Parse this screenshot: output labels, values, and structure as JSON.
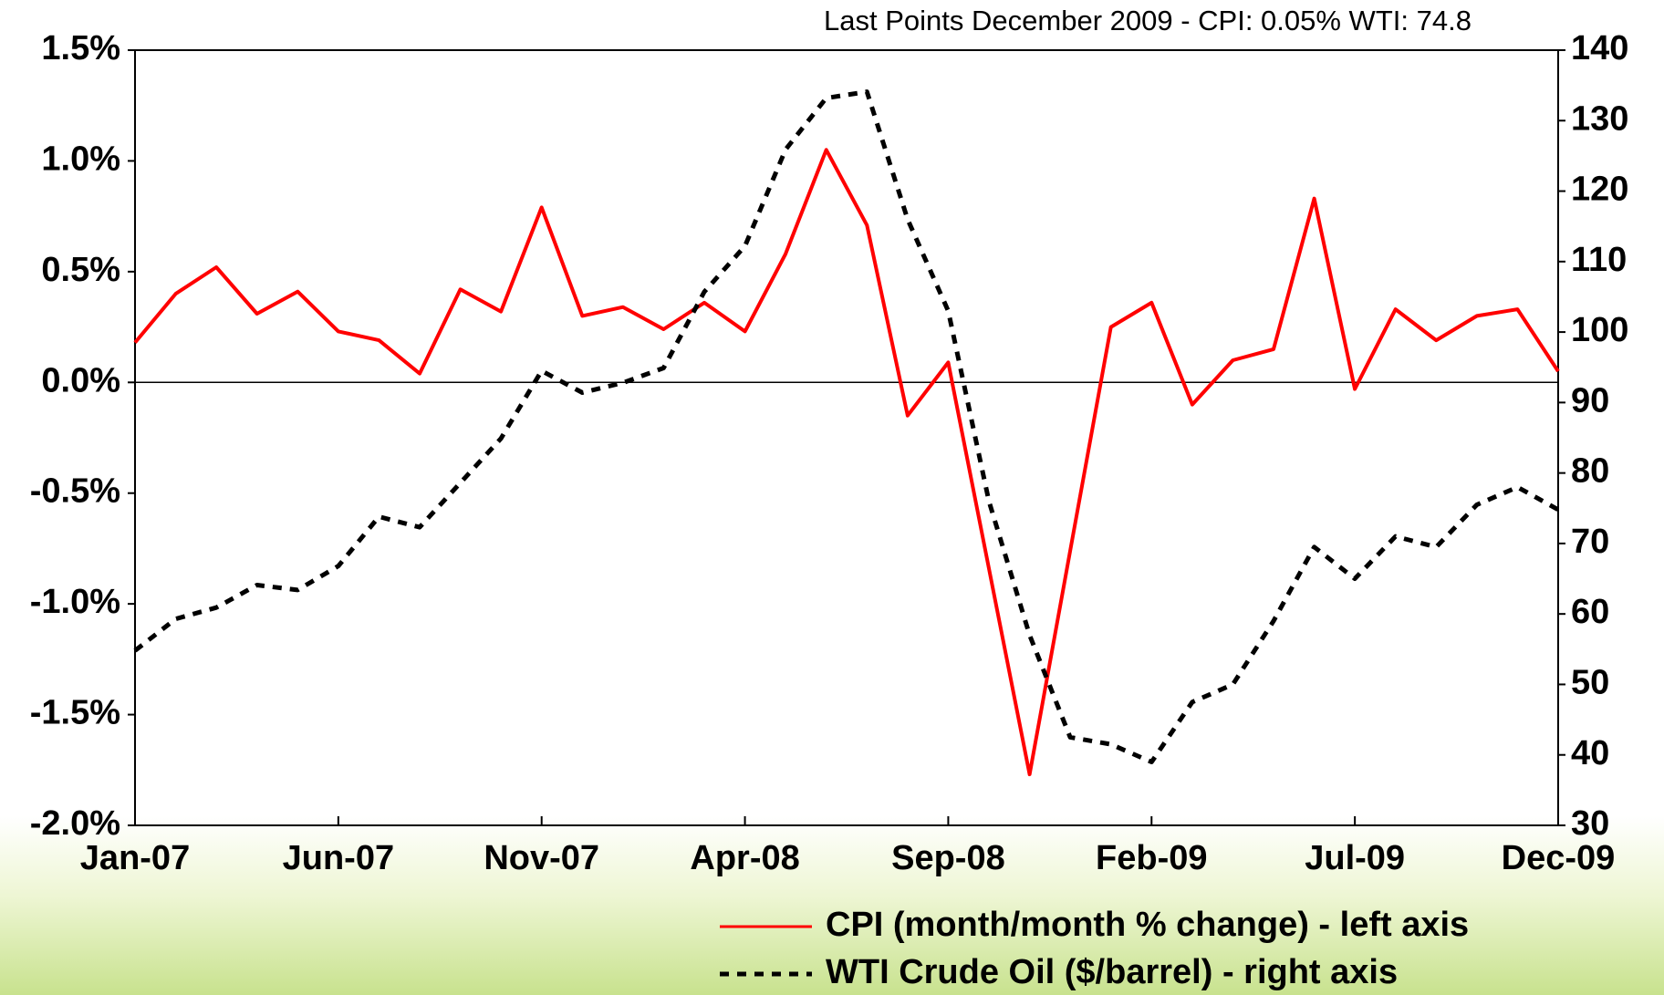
{
  "chart_data": {
    "type": "line",
    "annotation": "Last Points December 2009 - CPI: 0.05% WTI: 74.8",
    "categories": [
      "Jan-07",
      null,
      null,
      null,
      null,
      "Jun-07",
      null,
      null,
      null,
      null,
      "Nov-07",
      null,
      null,
      null,
      null,
      "Apr-08",
      null,
      null,
      null,
      null,
      "Sep-08",
      null,
      null,
      null,
      null,
      "Feb-09",
      null,
      null,
      null,
      null,
      "Jul-09",
      null,
      null,
      null,
      null,
      "Dec-09"
    ],
    "series": [
      {
        "name": "CPI (month/month % change) - left axis",
        "color": "#ff0000",
        "dash": false,
        "values": [
          0.18,
          0.4,
          0.52,
          0.31,
          0.41,
          0.23,
          0.19,
          0.04,
          0.42,
          0.32,
          0.79,
          0.3,
          0.34,
          0.24,
          0.36,
          0.23,
          0.58,
          1.05,
          0.71,
          -0.15,
          0.09,
          -0.84,
          -1.77,
          -0.76,
          0.25,
          0.36,
          -0.1,
          0.1,
          0.15,
          0.83,
          -0.03,
          0.33,
          0.19,
          0.3,
          0.33,
          0.05
        ]
      },
      {
        "name": "WTI Crude Oil ($/barrel) - right axis",
        "color": "#000000",
        "dash": true,
        "axis": "y2",
        "values": [
          54.8,
          59.3,
          60.9,
          64.1,
          63.4,
          66.8,
          73.8,
          72.3,
          78.6,
          84.9,
          94.5,
          91.4,
          92.8,
          94.9,
          105.7,
          112.2,
          125.9,
          133.2,
          134.1,
          116.0,
          103.0,
          76.0,
          57.0,
          42.5,
          41.5,
          39.0,
          47.5,
          50.0,
          59.0,
          69.5,
          65.0,
          71.0,
          69.5,
          75.5,
          78.0,
          74.8
        ]
      }
    ],
    "ylim": [
      -2.0,
      1.5
    ],
    "yticks": [
      {
        "value": -2.0,
        "label": "-2.0%"
      },
      {
        "value": -1.5,
        "label": "-1.5%"
      },
      {
        "value": -1.0,
        "label": "-1.0%"
      },
      {
        "value": -0.5,
        "label": "-0.5%"
      },
      {
        "value": 0,
        "label": "0.0%"
      },
      {
        "value": 0.5,
        "label": "0.5%"
      },
      {
        "value": 1.0,
        "label": "1.0%"
      },
      {
        "value": 1.5,
        "label": "1.5%"
      }
    ],
    "y2lim": [
      30,
      140
    ],
    "y2ticks": [
      30,
      40,
      50,
      60,
      70,
      80,
      90,
      100,
      110,
      120,
      130,
      140
    ],
    "grid": false,
    "legend": "bottom-right"
  }
}
